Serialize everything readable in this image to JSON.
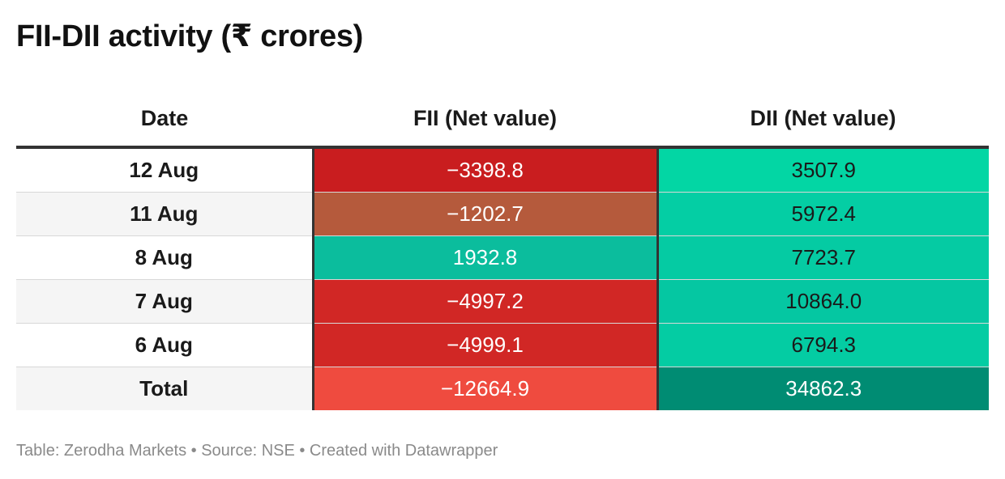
{
  "chart_data": {
    "type": "table",
    "title": "FII-DII activity (₹ crores)",
    "columns": [
      "Date",
      "FII (Net value)",
      "DII (Net value)"
    ],
    "rows": [
      {
        "date": "12 Aug",
        "fii": "−3398.8",
        "dii": "3507.9",
        "fii_value": -3398.8,
        "dii_value": 3507.9,
        "fii_color": "#c91d1f",
        "dii_color": "#03d6a4",
        "fii_text_color": "#ffffff",
        "dii_text_color": "#1a1a1a"
      },
      {
        "date": "11 Aug",
        "fii": "−1202.7",
        "dii": "5972.4",
        "fii_value": -1202.7,
        "dii_value": 5972.4,
        "fii_color": "#b55a3c",
        "dii_color": "#04cea4",
        "fii_text_color": "#ffffff",
        "dii_text_color": "#1a1a1a"
      },
      {
        "date": "8 Aug",
        "fii": "1932.8",
        "dii": "7723.7",
        "fii_value": 1932.8,
        "dii_value": 7723.7,
        "fii_color": "#0bbd9d",
        "dii_color": "#05cba3",
        "fii_text_color": "#ffffff",
        "dii_text_color": "#1a1a1a"
      },
      {
        "date": "7 Aug",
        "fii": "−4997.2",
        "dii": "10864.0",
        "fii_value": -4997.2,
        "dii_value": 10864.0,
        "fii_color": "#d12725",
        "dii_color": "#05c7a2",
        "fii_text_color": "#ffffff",
        "dii_text_color": "#1a1a1a"
      },
      {
        "date": "6 Aug",
        "fii": "−4999.1",
        "dii": "6794.3",
        "fii_value": -4999.1,
        "dii_value": 6794.3,
        "fii_color": "#d12725",
        "dii_color": "#04cca3",
        "fii_text_color": "#ffffff",
        "dii_text_color": "#1a1a1a"
      },
      {
        "date": "Total",
        "fii": "−12664.9",
        "dii": "34862.3",
        "fii_value": -12664.9,
        "dii_value": 34862.3,
        "fii_color": "#ef4b3f",
        "dii_color": "#008c73",
        "fii_text_color": "#ffffff",
        "dii_text_color": "#ffffff"
      }
    ]
  },
  "footer": "Table: Zerodha Markets • Source: NSE • Created with Datawrapper"
}
